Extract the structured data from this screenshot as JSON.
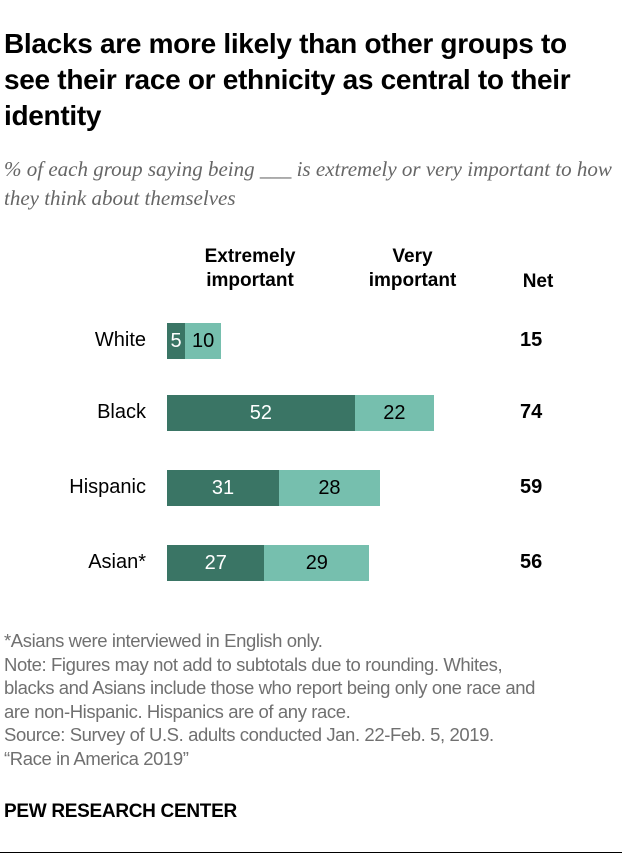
{
  "title": "Blacks are more likely than other groups to see their race or ethnicity as central to their identity",
  "subtitle": "% of each group saying being ___ is extremely or very important to how they think about themselves",
  "chart_data": {
    "type": "bar",
    "orientation": "horizontal",
    "stacked": true,
    "categories": [
      "White",
      "Black",
      "Hispanic",
      "Asian*"
    ],
    "series": [
      {
        "name": "Extremely important",
        "values": [
          5,
          52,
          31,
          27
        ],
        "color": "#3a7565",
        "label_color": "#ffffff"
      },
      {
        "name": "Very important",
        "values": [
          10,
          22,
          28,
          29
        ],
        "color": "#76bfae",
        "label_color": "#000000"
      }
    ],
    "net_label": "Net",
    "net": [
      15,
      74,
      59,
      56
    ],
    "grid": false
  },
  "footer": {
    "lines": [
      "*Asians were interviewed in English only.",
      "Note: Figures may not add to subtotals due to rounding. Whites,",
      "blacks and Asians include those who report being only one race and",
      "are non-Hispanic. Hispanics are of any race.",
      "Source: Survey of U.S. adults conducted Jan. 22-Feb. 5, 2019.",
      "“Race in America 2019”"
    ],
    "brand": "PEW RESEARCH CENTER"
  }
}
